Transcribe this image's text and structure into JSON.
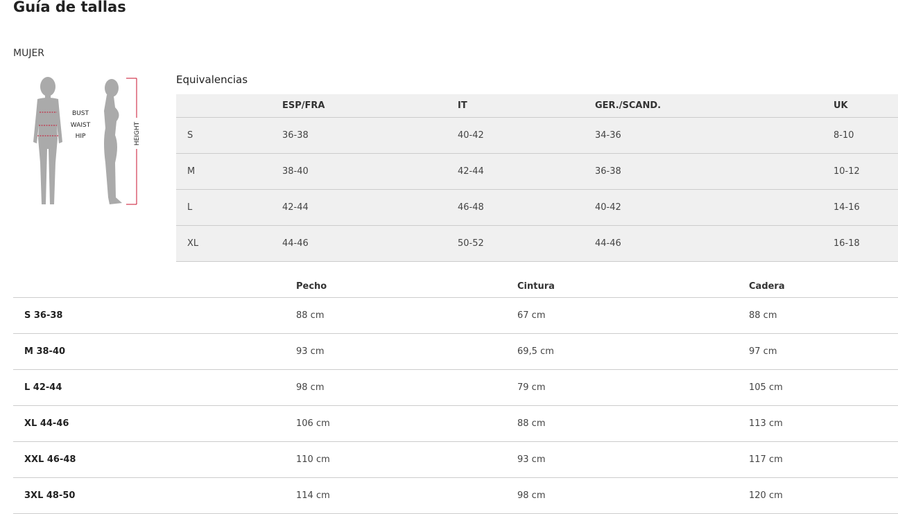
{
  "title": "Guía de tallas",
  "section": "MUJER",
  "figure": {
    "bust": "BUST",
    "waist": "WAIST",
    "hip": "HIP",
    "height": "HEIGHT",
    "accent": "#c8102e"
  },
  "equivalences": {
    "title": "Equivalencias",
    "headers": [
      "",
      "ESP/FRA",
      "IT",
      "GER./SCAND.",
      "UK"
    ],
    "rows": [
      [
        "S",
        "36-38",
        "40-42",
        "34-36",
        "8-10"
      ],
      [
        "M",
        "38-40",
        "42-44",
        "36-38",
        "10-12"
      ],
      [
        "L",
        "42-44",
        "46-48",
        "40-42",
        "14-16"
      ],
      [
        "XL",
        "44-46",
        "50-52",
        "44-46",
        "16-18"
      ]
    ]
  },
  "measurements": {
    "headers": [
      "",
      "Pecho",
      "Cintura",
      "Cadera"
    ],
    "rows": [
      [
        "S 36-38",
        "88 cm",
        "67 cm",
        "88 cm"
      ],
      [
        "M 38-40",
        "93 cm",
        "69,5 cm",
        "97 cm"
      ],
      [
        "L 42-44",
        "98 cm",
        "79 cm",
        "105 cm"
      ],
      [
        "XL 44-46",
        "106 cm",
        "88 cm",
        "113 cm"
      ],
      [
        "XXL 46-48",
        "110 cm",
        "93 cm",
        "117 cm"
      ],
      [
        "3XL 48-50",
        "114 cm",
        "98 cm",
        "120 cm"
      ]
    ]
  }
}
